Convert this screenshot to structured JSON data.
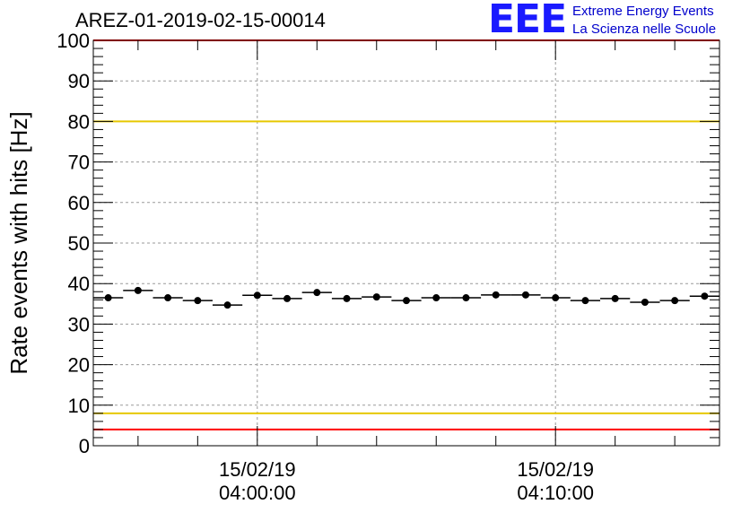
{
  "header": {
    "title": "AREZ-01-2019-02-15-00014"
  },
  "logo": {
    "mark": "EEE",
    "line1": "Extreme Energy Events",
    "line2": "La Scienza nelle Scuole",
    "color": "#1a1aff"
  },
  "chart_data": {
    "type": "scatter",
    "title": "AREZ-01-2019-02-15-00014",
    "xlabel": "",
    "ylabel": "Rate events with hits [Hz]",
    "ylim": [
      0,
      100
    ],
    "yticks": [
      0,
      10,
      20,
      30,
      40,
      50,
      60,
      70,
      80,
      90,
      100
    ],
    "xlim_minutes": [
      -5.5,
      15.5
    ],
    "xticks": [
      {
        "minute": 0,
        "label_date": "15/02/19",
        "label_time": "04:00:00"
      },
      {
        "minute": 10,
        "label_date": "15/02/19",
        "label_time": "04:10:00"
      }
    ],
    "grid": true,
    "bin_width_minutes": 1,
    "series": [
      {
        "marker": "circle",
        "color": "#000000",
        "points": [
          {
            "x": -5.0,
            "y": 36.5
          },
          {
            "x": -4.0,
            "y": 38.3
          },
          {
            "x": -3.0,
            "y": 36.5
          },
          {
            "x": -2.0,
            "y": 35.8
          },
          {
            "x": -1.0,
            "y": 34.7
          },
          {
            "x": 0.0,
            "y": 37.1
          },
          {
            "x": 1.0,
            "y": 36.3
          },
          {
            "x": 2.0,
            "y": 37.8
          },
          {
            "x": 3.0,
            "y": 36.3
          },
          {
            "x": 4.0,
            "y": 36.7
          },
          {
            "x": 5.0,
            "y": 35.8
          },
          {
            "x": 6.0,
            "y": 36.5
          },
          {
            "x": 7.0,
            "y": 36.5
          },
          {
            "x": 8.0,
            "y": 37.2
          },
          {
            "x": 9.0,
            "y": 37.2
          },
          {
            "x": 10.0,
            "y": 36.5
          },
          {
            "x": 11.0,
            "y": 35.8
          },
          {
            "x": 12.0,
            "y": 36.3
          },
          {
            "x": 13.0,
            "y": 35.4
          },
          {
            "x": 14.0,
            "y": 35.8
          },
          {
            "x": 15.0,
            "y": 36.9
          }
        ]
      }
    ],
    "reference_lines": [
      {
        "y": 100,
        "color": "#ff0000"
      },
      {
        "y": 80,
        "color": "#e6c800"
      },
      {
        "y": 8,
        "color": "#e6c800"
      },
      {
        "y": 4,
        "color": "#ff0000"
      }
    ]
  }
}
